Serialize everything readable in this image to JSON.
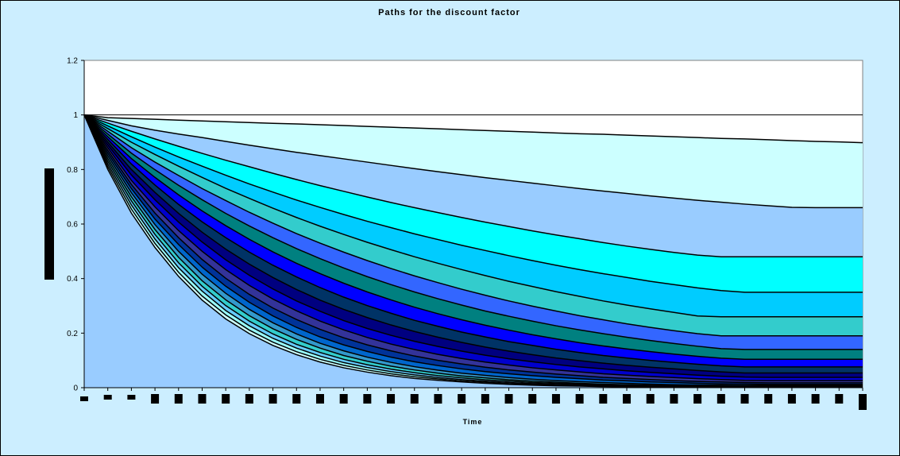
{
  "chart_data": {
    "type": "area",
    "title": "Paths for the discount factor",
    "xlabel": "Time",
    "ylabel": "",
    "ylim": [
      0,
      1.2
    ],
    "yticks": [
      "0",
      "0.2",
      "0.4",
      "0.6",
      "0.8",
      "1",
      "1.2"
    ],
    "x_steps": 33,
    "legend": "none",
    "grid": "major horizontal at 1",
    "series": [
      {
        "values": [
          1,
          0.99,
          0.987,
          0.984,
          0.981,
          0.978,
          0.975,
          0.972,
          0.969,
          0.967,
          0.964,
          0.961,
          0.958,
          0.955,
          0.952,
          0.949,
          0.946,
          0.943,
          0.94,
          0.937,
          0.934,
          0.931,
          0.929,
          0.926,
          0.923,
          0.92,
          0.917,
          0.914,
          0.912,
          0.909,
          0.906,
          0.903,
          0.901,
          0.898
        ]
      },
      {
        "values": [
          1,
          0.98,
          0.96,
          0.944,
          0.93,
          0.917,
          0.903,
          0.889,
          0.876,
          0.863,
          0.851,
          0.839,
          0.827,
          0.815,
          0.803,
          0.792,
          0.781,
          0.77,
          0.76,
          0.75,
          0.74,
          0.73,
          0.721,
          0.712,
          0.703,
          0.695,
          0.687,
          0.68,
          0.673,
          0.667,
          0.661,
          0.66,
          0.66,
          0.66
        ]
      },
      {
        "values": [
          1,
          0.97,
          0.94,
          0.912,
          0.885,
          0.859,
          0.834,
          0.81,
          0.786,
          0.763,
          0.741,
          0.72,
          0.699,
          0.679,
          0.66,
          0.642,
          0.624,
          0.607,
          0.591,
          0.575,
          0.56,
          0.546,
          0.532,
          0.519,
          0.507,
          0.496,
          0.486,
          0.48,
          0.48,
          0.48,
          0.48,
          0.48,
          0.48,
          0.48
        ]
      },
      {
        "values": [
          1,
          0.96,
          0.92,
          0.882,
          0.846,
          0.812,
          0.779,
          0.747,
          0.717,
          0.688,
          0.661,
          0.635,
          0.61,
          0.587,
          0.564,
          0.543,
          0.522,
          0.503,
          0.484,
          0.466,
          0.449,
          0.433,
          0.418,
          0.404,
          0.39,
          0.378,
          0.366,
          0.356,
          0.35,
          0.35,
          0.35,
          0.35,
          0.35,
          0.35
        ]
      },
      {
        "values": [
          1,
          0.95,
          0.9,
          0.855,
          0.812,
          0.771,
          0.731,
          0.694,
          0.658,
          0.624,
          0.592,
          0.562,
          0.533,
          0.506,
          0.48,
          0.456,
          0.433,
          0.411,
          0.39,
          0.371,
          0.352,
          0.335,
          0.318,
          0.303,
          0.289,
          0.276,
          0.263,
          0.26,
          0.26,
          0.26,
          0.26,
          0.26,
          0.26,
          0.26
        ]
      },
      {
        "values": [
          1,
          0.94,
          0.88,
          0.827,
          0.778,
          0.73,
          0.686,
          0.643,
          0.603,
          0.565,
          0.53,
          0.497,
          0.466,
          0.437,
          0.41,
          0.385,
          0.361,
          0.339,
          0.318,
          0.299,
          0.281,
          0.264,
          0.249,
          0.234,
          0.221,
          0.209,
          0.198,
          0.19,
          0.19,
          0.19,
          0.19,
          0.19,
          0.19,
          0.19
        ]
      },
      {
        "values": [
          1,
          0.93,
          0.86,
          0.799,
          0.742,
          0.689,
          0.639,
          0.593,
          0.55,
          0.51,
          0.473,
          0.439,
          0.407,
          0.378,
          0.351,
          0.326,
          0.303,
          0.281,
          0.262,
          0.244,
          0.227,
          0.212,
          0.198,
          0.185,
          0.173,
          0.162,
          0.152,
          0.143,
          0.14,
          0.14,
          0.14,
          0.14,
          0.14,
          0.14
        ]
      },
      {
        "values": [
          1,
          0.92,
          0.84,
          0.771,
          0.707,
          0.648,
          0.594,
          0.544,
          0.498,
          0.456,
          0.418,
          0.383,
          0.351,
          0.322,
          0.295,
          0.271,
          0.249,
          0.229,
          0.211,
          0.194,
          0.179,
          0.165,
          0.153,
          0.142,
          0.132,
          0.123,
          0.115,
          0.108,
          0.104,
          0.104,
          0.104,
          0.104,
          0.104,
          0.104
        ]
      },
      {
        "values": [
          1,
          0.91,
          0.82,
          0.743,
          0.672,
          0.608,
          0.55,
          0.497,
          0.449,
          0.406,
          0.367,
          0.332,
          0.301,
          0.273,
          0.247,
          0.225,
          0.204,
          0.186,
          0.169,
          0.155,
          0.141,
          0.129,
          0.118,
          0.109,
          0.1,
          0.093,
          0.086,
          0.08,
          0.076,
          0.076,
          0.076,
          0.076,
          0.076,
          0.076
        ]
      },
      {
        "values": [
          1,
          0.9,
          0.8,
          0.716,
          0.639,
          0.57,
          0.508,
          0.453,
          0.404,
          0.36,
          0.321,
          0.287,
          0.257,
          0.23,
          0.206,
          0.185,
          0.166,
          0.149,
          0.134,
          0.121,
          0.109,
          0.099,
          0.09,
          0.082,
          0.075,
          0.069,
          0.063,
          0.058,
          0.054,
          0.054,
          0.054,
          0.054,
          0.054,
          0.054
        ]
      },
      {
        "values": [
          1,
          0.89,
          0.78,
          0.689,
          0.607,
          0.534,
          0.469,
          0.412,
          0.362,
          0.318,
          0.28,
          0.246,
          0.217,
          0.192,
          0.17,
          0.151,
          0.134,
          0.119,
          0.106,
          0.095,
          0.085,
          0.076,
          0.069,
          0.062,
          0.056,
          0.051,
          0.046,
          0.042,
          0.039,
          0.038,
          0.038,
          0.038,
          0.038,
          0.038
        ]
      },
      {
        "values": [
          1,
          0.88,
          0.76,
          0.663,
          0.576,
          0.5,
          0.433,
          0.375,
          0.325,
          0.282,
          0.244,
          0.212,
          0.184,
          0.16,
          0.14,
          0.122,
          0.107,
          0.094,
          0.083,
          0.073,
          0.065,
          0.058,
          0.051,
          0.046,
          0.041,
          0.037,
          0.033,
          0.03,
          0.027,
          0.026,
          0.026,
          0.026,
          0.026,
          0.026
        ]
      },
      {
        "values": [
          1,
          0.87,
          0.745,
          0.64,
          0.55,
          0.47,
          0.401,
          0.342,
          0.292,
          0.25,
          0.214,
          0.183,
          0.157,
          0.135,
          0.116,
          0.1,
          0.087,
          0.075,
          0.065,
          0.057,
          0.05,
          0.044,
          0.038,
          0.034,
          0.03,
          0.026,
          0.023,
          0.021,
          0.019,
          0.018,
          0.018,
          0.018,
          0.018,
          0.018
        ]
      },
      {
        "values": [
          1,
          0.86,
          0.73,
          0.618,
          0.525,
          0.442,
          0.372,
          0.313,
          0.263,
          0.221,
          0.186,
          0.157,
          0.133,
          0.112,
          0.095,
          0.081,
          0.069,
          0.059,
          0.051,
          0.044,
          0.038,
          0.033,
          0.028,
          0.025,
          0.021,
          0.019,
          0.016,
          0.014,
          0.013,
          0.012,
          0.012,
          0.012,
          0.012,
          0.012
        ]
      },
      {
        "values": [
          1,
          0.85,
          0.715,
          0.598,
          0.5,
          0.416,
          0.346,
          0.287,
          0.238,
          0.197,
          0.163,
          0.135,
          0.112,
          0.093,
          0.077,
          0.064,
          0.053,
          0.045,
          0.037,
          0.031,
          0.026,
          0.022,
          0.019,
          0.016,
          0.013,
          0.011,
          0.01,
          0.009,
          0.008,
          0.008,
          0.008,
          0.008,
          0.008,
          0.008
        ]
      },
      {
        "values": [
          1,
          0.84,
          0.7,
          0.58,
          0.478,
          0.392,
          0.322,
          0.264,
          0.216,
          0.177,
          0.145,
          0.118,
          0.097,
          0.079,
          0.065,
          0.053,
          0.043,
          0.036,
          0.029,
          0.024,
          0.02,
          0.016,
          0.013,
          0.011,
          0.009,
          0.008,
          0.007,
          0.006,
          0.005,
          0.005,
          0.005,
          0.005,
          0.005,
          0.005
        ]
      },
      {
        "values": [
          1,
          0.83,
          0.685,
          0.562,
          0.458,
          0.372,
          0.301,
          0.244,
          0.197,
          0.159,
          0.129,
          0.104,
          0.084,
          0.068,
          0.055,
          0.044,
          0.036,
          0.029,
          0.024,
          0.019,
          0.016,
          0.013,
          0.01,
          0.008,
          0.007,
          0.006,
          0.005,
          0.004,
          0.003,
          0.003,
          0.003,
          0.003,
          0.003,
          0.003
        ]
      },
      {
        "values": [
          1,
          0.82,
          0.67,
          0.545,
          0.44,
          0.354,
          0.283,
          0.227,
          0.181,
          0.145,
          0.116,
          0.092,
          0.074,
          0.059,
          0.047,
          0.037,
          0.03,
          0.024,
          0.019,
          0.015,
          0.012,
          0.01,
          0.008,
          0.006,
          0.005,
          0.004,
          0.003,
          0.003,
          0.002,
          0.002,
          0.002,
          0.002,
          0.002,
          0.002
        ]
      },
      {
        "values": [
          1,
          0.81,
          0.655,
          0.529,
          0.423,
          0.336,
          0.267,
          0.211,
          0.167,
          0.132,
          0.104,
          0.082,
          0.065,
          0.051,
          0.04,
          0.032,
          0.025,
          0.02,
          0.015,
          0.012,
          0.009,
          0.007,
          0.006,
          0.005,
          0.004,
          0.003,
          0.002,
          0.002,
          0.001,
          0.001,
          0.001,
          0.001,
          0.001,
          0.001
        ]
      },
      {
        "values": [
          1,
          0.8,
          0.64,
          0.514,
          0.408,
          0.321,
          0.252,
          0.198,
          0.155,
          0.121,
          0.094,
          0.073,
          0.057,
          0.044,
          0.034,
          0.027,
          0.021,
          0.016,
          0.012,
          0.009,
          0.007,
          0.006,
          0.004,
          0.003,
          0.003,
          0.002,
          0.002,
          0.001,
          0.001,
          0.001,
          0.001,
          0.001,
          0.001,
          0.001
        ]
      }
    ],
    "fills": [
      "#ccffff",
      "#99ccff",
      "#00ffff",
      "#00ccff",
      "#33cccc",
      "#3366ff",
      "#008080",
      "#0000ff",
      "#003366",
      "#000080",
      "#0000cc",
      "#333399",
      "#003399",
      "#0066cc",
      "#3399cc",
      "#33cccc",
      "#66ccff",
      "#99ffff",
      "#ccffff",
      "#99ccff"
    ],
    "plot_bg": "#ffffff",
    "chart_bg": "#cceeff"
  }
}
